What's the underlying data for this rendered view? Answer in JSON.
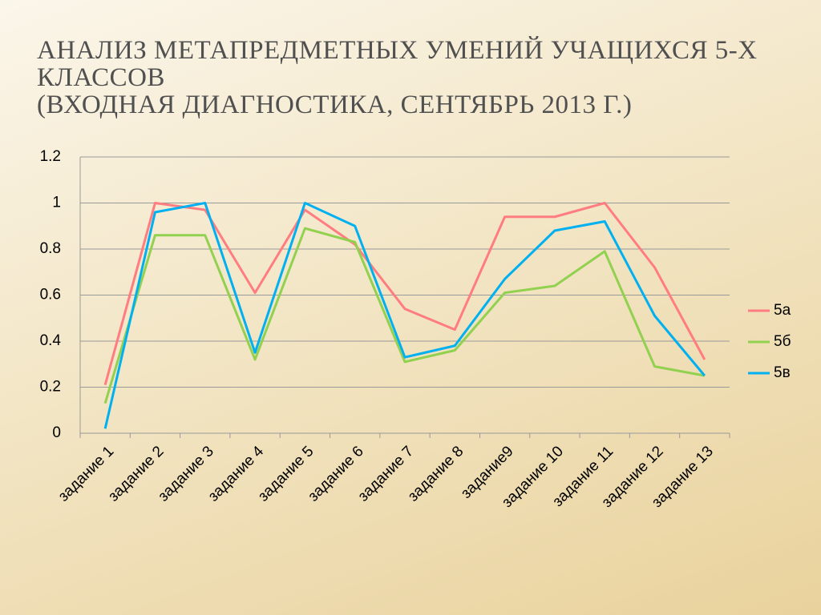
{
  "chart_data": {
    "type": "line",
    "title": "АНАЛИЗ МЕТАПРЕДМЕТНЫХ УМЕНИЙ УЧАЩИХСЯ 5-Х КЛАССОВ",
    "subtitle": "(ВХОДНАЯ ДИАГНОСТИКА, СЕНТЯБРЬ 2013 Г.)",
    "categories": [
      "задание 1",
      "задание 2",
      "задание 3",
      "задание 4",
      "задание 5",
      "задание 6",
      "задание 7",
      "задание 8",
      "задание9",
      "задание 10",
      "задание 11",
      "задание 12",
      "задание 13"
    ],
    "series": [
      {
        "name": "5а",
        "color": "#ff7c80",
        "values": [
          0.21,
          1.0,
          0.97,
          0.61,
          0.97,
          0.82,
          0.54,
          0.45,
          0.94,
          0.94,
          1.0,
          0.72,
          0.32
        ]
      },
      {
        "name": "5б",
        "color": "#92d050",
        "values": [
          0.13,
          0.86,
          0.86,
          0.32,
          0.89,
          0.83,
          0.31,
          0.36,
          0.61,
          0.64,
          0.79,
          0.29,
          0.25
        ]
      },
      {
        "name": "5в",
        "color": "#00b0f0",
        "values": [
          0.02,
          0.96,
          1.0,
          0.35,
          1.0,
          0.9,
          0.33,
          0.38,
          0.67,
          0.88,
          0.92,
          0.51,
          0.25
        ]
      }
    ],
    "ylim": [
      0,
      1.2
    ],
    "yticks": [
      0,
      0.2,
      0.4,
      0.6,
      0.8,
      1,
      1.2
    ],
    "grid": true,
    "legend": "right"
  }
}
